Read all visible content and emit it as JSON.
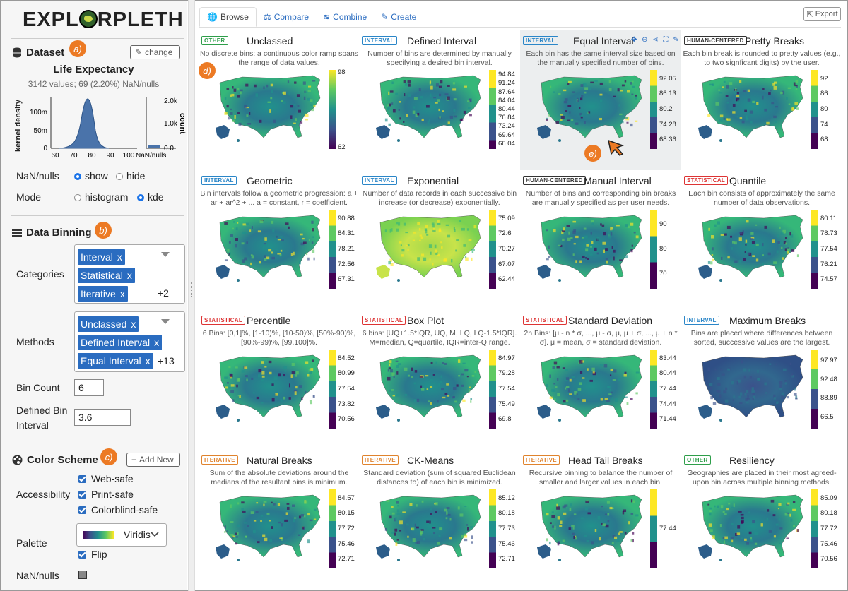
{
  "app": {
    "logo_left": "EXPL",
    "logo_right": "RPLETH"
  },
  "sidebar": {
    "dataset": {
      "marker": "a)",
      "title": "Dataset",
      "change_label": "change",
      "name": "Life Expectancy",
      "stats": "3142 values; 69 (2.20%) NaN/nulls",
      "kde_ylabel": "kernel density",
      "kde_yticks": [
        "100m",
        "50m",
        "0"
      ],
      "kde_xticks": [
        "60",
        "70",
        "80",
        "90",
        "100"
      ],
      "count_label": "count",
      "count_ticks": [
        "2.0k",
        "1.0k",
        "0.0"
      ],
      "nan_axis_label": "NaN/nulls",
      "kde_peak": 78,
      "nan_label": "NaN/nulls",
      "nan_show": "show",
      "nan_hide": "hide",
      "mode_label": "Mode",
      "mode_histogram": "histogram",
      "mode_kde": "kde"
    },
    "binning": {
      "marker": "b)",
      "title": "Data Binning",
      "categories_label": "Categories",
      "categories": [
        "Interval",
        "Statistical",
        "Iterative"
      ],
      "categories_more": "+2",
      "methods_label": "Methods",
      "methods": [
        "Unclassed",
        "Defined Interval",
        "Equal Interval"
      ],
      "methods_more": "+13",
      "bin_count_label": "Bin Count",
      "bin_count": "6",
      "defined_interval_label_1": "Defined Bin",
      "defined_interval_label_2": "Interval",
      "defined_interval": "3.6"
    },
    "color": {
      "marker": "c)",
      "title": "Color Scheme",
      "add_label": "Add New",
      "accessibility_label": "Accessibility",
      "web": "Web-safe",
      "print": "Print-safe",
      "colorblind": "Colorblind-safe",
      "palette_label": "Palette",
      "palette": "Viridis",
      "flip": "Flip",
      "nan_label": "NaN/nulls"
    }
  },
  "tabs": [
    "Browse",
    "Compare",
    "Combine",
    "Create"
  ],
  "export_label": "Export",
  "markers": {
    "d": "d)",
    "e": "e)"
  },
  "cards": [
    {
      "tag": "OTHER",
      "cls": "other",
      "title": "Unclassed",
      "desc": "No discrete bins; a continuous color ramp spans the range of data values.",
      "ticks": [
        "98",
        "62"
      ],
      "continuous": true
    },
    {
      "tag": "INTERVAL",
      "cls": "interval",
      "title": "Defined Interval",
      "desc": "Number of bins are determined by manually specifying a desired bin interval.",
      "ticks": [
        "94.84",
        "91.24",
        "87.64",
        "84.04",
        "80.44",
        "76.84",
        "73.24",
        "69.64",
        "66.04"
      ]
    },
    {
      "tag": "INTERVAL",
      "cls": "interval",
      "title": "Equal Interval",
      "desc": "Each bin has the same interval size based on the manually specified number of bins.",
      "ticks": [
        "92.05",
        "86.13",
        "80.2",
        "74.28",
        "68.36"
      ],
      "highlight": true
    },
    {
      "tag": "HUMAN-CENTERED",
      "cls": "human",
      "title": "Pretty Breaks",
      "desc": "Each bin break is rounded to pretty values (e.g., to two signficant digits) by the user.",
      "ticks": [
        "92",
        "86",
        "80",
        "74",
        "68"
      ]
    },
    {
      "tag": "INTERVAL",
      "cls": "interval",
      "title": "Geometric",
      "desc": "Bin intervals follow a geometric progression: a + ar + ar^2 + ... a = constant, r = coefficient.",
      "ticks": [
        "90.88",
        "84.31",
        "78.21",
        "72.56",
        "67.31"
      ]
    },
    {
      "tag": "INTERVAL",
      "cls": "interval",
      "title": "Exponential",
      "desc": "Number of data records in each successive bin increase (or decrease) exponentially.",
      "ticks": [
        "75.09",
        "72.6",
        "70.27",
        "67.07",
        "62.44"
      ],
      "yellow": true
    },
    {
      "tag": "HUMAN-CENTERED",
      "cls": "human",
      "title": "Manual Interval",
      "desc": "Number of bins and corresponding bin breaks are manually specified as per user needs.",
      "ticks": [
        "90",
        "80",
        "70"
      ]
    },
    {
      "tag": "STATISTICAL",
      "cls": "statistical",
      "title": "Quantile",
      "desc": "Each bin consists of approximately the same number of data observations.",
      "ticks": [
        "80.11",
        "78.73",
        "77.54",
        "76.21",
        "74.57"
      ]
    },
    {
      "tag": "STATISTICAL",
      "cls": "statistical",
      "title": "Percentile",
      "desc": "6 Bins: [0,1]%, [1-10)%, [10-50)%, [50%-90)%, [90%-99)%, [99,100]%.",
      "ticks": [
        "84.52",
        "80.99",
        "77.54",
        "73.82",
        "70.56"
      ]
    },
    {
      "tag": "STATISTICAL",
      "cls": "statistical",
      "title": "Box Plot",
      "desc": "6 bins: [UQ+1.5*IQR, UQ, M, LQ, LQ-1.5*IQR]. M=median, Q=quartile, IQR=inter-Q range.",
      "ticks": [
        "84.97",
        "79.28",
        "77.54",
        "75.49",
        "69.8"
      ]
    },
    {
      "tag": "STATISTICAL",
      "cls": "statistical",
      "title": "Standard Deviation",
      "desc": "2n Bins: [μ - n * σ, ..., μ - σ, μ, μ + σ, ..., μ + n * σ]. μ = mean, σ = standard deviation.",
      "ticks": [
        "83.44",
        "80.44",
        "77.44",
        "74.44",
        "71.44"
      ]
    },
    {
      "tag": "INTERVAL",
      "cls": "interval",
      "title": "Maximum Breaks",
      "desc": "Bins are placed where differences between sorted, successive values are the largest.",
      "ticks": [
        "97.97",
        "92.48",
        "88.89",
        "66.5"
      ],
      "dark": true
    },
    {
      "tag": "ITERATIVE",
      "cls": "iterative",
      "title": "Natural Breaks",
      "desc": "Sum of the absolute deviations around the medians of the resultant bins is minimum.",
      "ticks": [
        "84.57",
        "80.15",
        "77.72",
        "75.46",
        "72.71"
      ]
    },
    {
      "tag": "ITERATIVE",
      "cls": "iterative",
      "title": "CK-Means",
      "desc": "Standard deviation (sum of squared Euclidean distances to) of each bin is minimized.",
      "ticks": [
        "85.12",
        "80.18",
        "77.73",
        "75.46",
        "72.71"
      ]
    },
    {
      "tag": "ITERATIVE",
      "cls": "iterative",
      "title": "Head Tail Breaks",
      "desc": "Recursive binning to balance the number of smaller and larger values in each bin.",
      "ticks": [
        "77.44"
      ]
    },
    {
      "tag": "OTHER",
      "cls": "other",
      "title": "Resiliency",
      "desc": "Geographies are placed in their most agreed-upon bin across multiple binning methods.",
      "ticks": [
        "85.09",
        "80.18",
        "77.72",
        "75.46",
        "70.56"
      ]
    }
  ]
}
